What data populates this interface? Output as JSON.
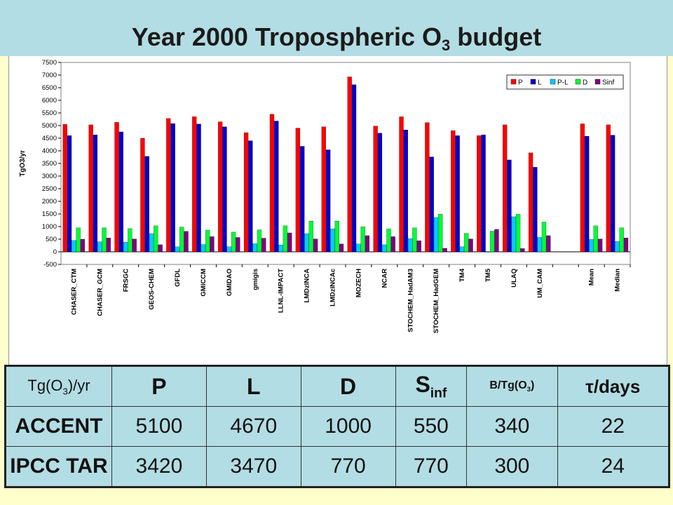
{
  "title": {
    "text": "Year 2000 Tropospheric O",
    "sub": "3",
    "suffix": " budget"
  },
  "chart_data": {
    "type": "bar",
    "ylabel": "TgO3/yr",
    "ylim": [
      -500,
      7500
    ],
    "yticks": [
      -500,
      0,
      500,
      1000,
      1500,
      2000,
      2500,
      3000,
      3500,
      4000,
      4500,
      5000,
      5500,
      6000,
      6500,
      7000,
      7500
    ],
    "categories": [
      "CHASER_CTM",
      "CHASER_GCM",
      "FRSGC",
      "GEOS-CHEM",
      "GFDL",
      "GMICCM",
      "GMIDAO",
      "gmigis",
      "LLNL-IMPACT",
      "LMDzINCA",
      "LMDzINCAc",
      "MOZECH",
      "NCAR",
      "STOCHEM_HadAM3",
      "STOCHEM_HadGEM",
      "TM4",
      "TM5",
      "ULAQ",
      "UM_CAM",
      "",
      "Mean",
      "Median"
    ],
    "legend_position": "top-right",
    "series": [
      {
        "name": "P",
        "color": "#FF0000",
        "values": [
          5050,
          5030,
          5130,
          4500,
          5280,
          5350,
          5150,
          4720,
          5450,
          4900,
          4950,
          6930,
          4980,
          5350,
          5120,
          4800,
          4600,
          5030,
          3920,
          null,
          5070,
          5030
        ]
      },
      {
        "name": "L",
        "color": "#0000CC",
        "values": [
          4600,
          4630,
          4750,
          3780,
          5080,
          5060,
          4950,
          4400,
          5180,
          4180,
          4040,
          6620,
          4700,
          4830,
          3760,
          4600,
          4630,
          3640,
          3350,
          null,
          4580,
          4620
        ]
      },
      {
        "name": "P-L",
        "color": "#00CCFF",
        "values": [
          450,
          400,
          380,
          720,
          200,
          290,
          200,
          320,
          270,
          720,
          910,
          310,
          280,
          520,
          1360,
          200,
          -20,
          1390,
          570,
          null,
          490,
          410
        ]
      },
      {
        "name": "D",
        "color": "#00FF33",
        "values": [
          950,
          950,
          920,
          1030,
          980,
          860,
          780,
          870,
          1030,
          1220,
          1220,
          990,
          910,
          950,
          1490,
          730,
          820,
          1490,
          1180,
          null,
          1030,
          950
        ]
      },
      {
        "name": "Sinf",
        "color": "#800080",
        "values": [
          500,
          550,
          510,
          280,
          810,
          600,
          570,
          540,
          750,
          510,
          310,
          640,
          600,
          440,
          140,
          510,
          890,
          130,
          640,
          null,
          510,
          550
        ]
      }
    ]
  },
  "table": {
    "header": {
      "col0": "Tg(O",
      "col0_sub": "3",
      "col0_suffix": ")/yr",
      "p": "P",
      "l": "L",
      "d": "D",
      "s": "S",
      "s_sub": "inf",
      "b": "B/Tg(O",
      "b_sub": "3",
      "b_suffix": ")",
      "tau": "τ/days"
    },
    "rows": [
      {
        "label": "ACCENT",
        "p": "5100",
        "l": "4670",
        "d": "1000",
        "s": "550",
        "b": "340",
        "tau": "22"
      },
      {
        "label": "IPCC TAR",
        "p": "3420",
        "l": "3470",
        "d": "770",
        "s": "770",
        "b": "300",
        "tau": "24"
      }
    ]
  }
}
